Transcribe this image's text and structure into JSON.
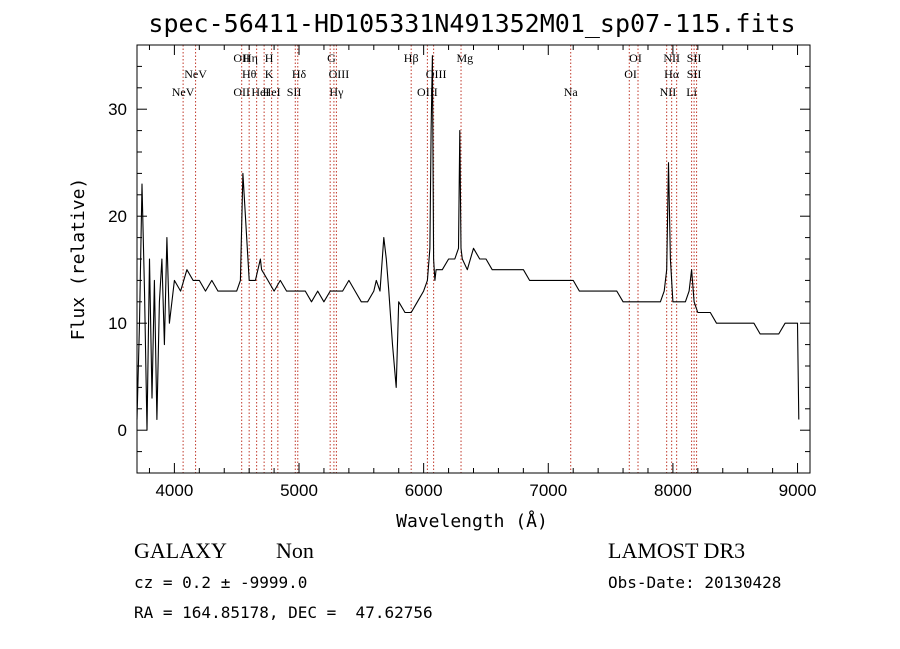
{
  "chart_data": {
    "type": "line",
    "title": "spec-56411-HD105331N491352M01_sp07-115.fits",
    "xlabel": "Wavelength (Å)",
    "ylabel": "Flux (relative)",
    "xlim": [
      3700,
      9100
    ],
    "ylim": [
      -4,
      36
    ],
    "xticks": [
      4000,
      5000,
      6000,
      7000,
      8000,
      9000
    ],
    "yticks": [
      0,
      10,
      20,
      30
    ],
    "x_minor_step": 200,
    "y_minor_step": 2,
    "series": [
      {
        "name": "spectrum",
        "color": "#000000",
        "x": [
          3700,
          3720,
          3740,
          3760,
          3780,
          3800,
          3820,
          3840,
          3860,
          3880,
          3900,
          3920,
          3940,
          3960,
          3980,
          4000,
          4050,
          4100,
          4150,
          4200,
          4250,
          4300,
          4350,
          4400,
          4450,
          4500,
          4530,
          4550,
          4600,
          4650,
          4690,
          4700,
          4750,
          4800,
          4850,
          4900,
          4950,
          5000,
          5050,
          5100,
          5150,
          5200,
          5250,
          5300,
          5350,
          5400,
          5450,
          5500,
          5550,
          5600,
          5620,
          5650,
          5680,
          5700,
          5720,
          5750,
          5780,
          5800,
          5850,
          5900,
          5950,
          6000,
          6030,
          6050,
          6060,
          6070,
          6080,
          6090,
          6100,
          6150,
          6200,
          6250,
          6280,
          6290,
          6300,
          6310,
          6350,
          6400,
          6450,
          6500,
          6550,
          6600,
          6650,
          6700,
          6750,
          6800,
          6850,
          6900,
          6950,
          7000,
          7050,
          7100,
          7150,
          7200,
          7250,
          7300,
          7350,
          7400,
          7450,
          7500,
          7550,
          7600,
          7650,
          7700,
          7750,
          7800,
          7850,
          7900,
          7930,
          7950,
          7965,
          7980,
          8000,
          8050,
          8100,
          8130,
          8150,
          8170,
          8200,
          8250,
          8300,
          8350,
          8400,
          8450,
          8500,
          8550,
          8600,
          8650,
          8700,
          8750,
          8800,
          8850,
          8900,
          8950,
          9000,
          9010
        ],
        "y": [
          1,
          10,
          23,
          13,
          0,
          16,
          3,
          14,
          1,
          12,
          16,
          8,
          18,
          10,
          12,
          14,
          13,
          15,
          14,
          14,
          13,
          14,
          13,
          13,
          13,
          13,
          14,
          24,
          14,
          14,
          16,
          15,
          14,
          13,
          14,
          13,
          13,
          13,
          13,
          12,
          13,
          12,
          13,
          13,
          13,
          14,
          13,
          12,
          12,
          13,
          14,
          13,
          18,
          16,
          13,
          8,
          4,
          12,
          11,
          11,
          12,
          13,
          14,
          17,
          28,
          35,
          16,
          14,
          15,
          15,
          16,
          16,
          17,
          28,
          17,
          16,
          15,
          17,
          16,
          16,
          15,
          15,
          15,
          15,
          15,
          15,
          14,
          14,
          14,
          14,
          14,
          14,
          14,
          14,
          13,
          13,
          13,
          13,
          13,
          13,
          13,
          12,
          12,
          12,
          12,
          12,
          12,
          12,
          13,
          15,
          25,
          16,
          12,
          12,
          12,
          13,
          15,
          12,
          11,
          11,
          11,
          10,
          10,
          10,
          10,
          10,
          10,
          10,
          9,
          9,
          9,
          9,
          10,
          10,
          10,
          1
        ]
      }
    ],
    "line_markers": [
      {
        "label": "NeV",
        "x": 4070,
        "row": 3
      },
      {
        "label": "NeV",
        "x": 4170,
        "row": 2
      },
      {
        "label": "OII",
        "x": 4540,
        "row": 1
      },
      {
        "label": "OII",
        "x": 4540,
        "row": 3
      },
      {
        "label": "Hη",
        "x": 4610,
        "row": 1
      },
      {
        "label": "Hθ",
        "x": 4600,
        "row": 2
      },
      {
        "label": "HeI",
        "x": 4690,
        "row": 3
      },
      {
        "label": "H",
        "x": 4760,
        "row": 1
      },
      {
        "label": "K",
        "x": 4760,
        "row": 2
      },
      {
        "label": "HeI",
        "x": 4780,
        "row": 3
      },
      {
        "label": "Hδ",
        "x": 5000,
        "row": 2
      },
      {
        "label": "SII",
        "x": 4960,
        "row": 3
      },
      {
        "label": "G",
        "x": 5260,
        "row": 1
      },
      {
        "label": "OIII",
        "x": 5320,
        "row": 2
      },
      {
        "label": "Hγ",
        "x": 5300,
        "row": 3
      },
      {
        "label": "Hβ",
        "x": 5900,
        "row": 1
      },
      {
        "label": "OIII",
        "x": 6100,
        "row": 2
      },
      {
        "label": "OIII",
        "x": 6030,
        "row": 3
      },
      {
        "label": "Mg",
        "x": 6330,
        "row": 1
      },
      {
        "label": "Na",
        "x": 7180,
        "row": 3
      },
      {
        "label": "OI",
        "x": 7700,
        "row": 1
      },
      {
        "label": "OI",
        "x": 7660,
        "row": 2
      },
      {
        "label": "NII",
        "x": 7990,
        "row": 1
      },
      {
        "label": "Hα",
        "x": 7990,
        "row": 2
      },
      {
        "label": "NII",
        "x": 7960,
        "row": 3
      },
      {
        "label": "SII",
        "x": 8170,
        "row": 1
      },
      {
        "label": "SII",
        "x": 8170,
        "row": 2
      },
      {
        "label": "Li",
        "x": 8150,
        "row": 3
      }
    ],
    "marker_lines": [
      4070,
      4170,
      4540,
      4600,
      4660,
      4720,
      4780,
      4830,
      4970,
      4990,
      5250,
      5280,
      5300,
      5900,
      6030,
      6080,
      6300,
      7180,
      7650,
      7720,
      7950,
      7990,
      8030,
      8150,
      8170,
      8190
    ],
    "marker_color": "#c0392b"
  },
  "footer": {
    "class_label": "GALAXY",
    "subclass": "Non",
    "survey": "LAMOST DR3",
    "cz_line": "cz = 0.2 ± -9999.0",
    "obs_date": "Obs-Date: 20130428",
    "coords": "RA = 164.85178, DEC =  47.62756"
  }
}
